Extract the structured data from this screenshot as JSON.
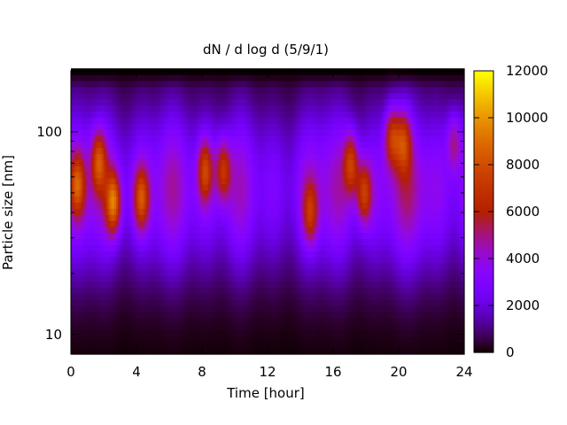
{
  "chart_data": {
    "type": "heatmap",
    "title": "dN / d log d (5/9/1)",
    "xlabel": "Time [hour]",
    "ylabel": "Particle size [nm]",
    "xlim": [
      0,
      24
    ],
    "ylim": [
      8,
      200
    ],
    "yscale": "log",
    "x_ticks": [
      "0",
      "4",
      "8",
      "12",
      "16",
      "20",
      "24"
    ],
    "x_tick_values": [
      0,
      4,
      8,
      12,
      16,
      20,
      24
    ],
    "y_ticks": [
      "10",
      "100"
    ],
    "y_tick_values": [
      10,
      100
    ],
    "colorbar": {
      "range": [
        0,
        12000
      ],
      "ticks": [
        "0",
        "2000",
        "4000",
        "6000",
        "8000",
        "10000",
        "12000"
      ],
      "tick_values": [
        0,
        2000,
        4000,
        6000,
        8000,
        10000,
        12000
      ],
      "colormap": "gnuplot-pm3d (black-purple-red-yellow)"
    },
    "mode_peaks": [
      {
        "t": 0.4,
        "d": 55,
        "v": 6500
      },
      {
        "t": 1.7,
        "d": 72,
        "v": 6800
      },
      {
        "t": 2.6,
        "d": 45,
        "v": 8600
      },
      {
        "t": 4.3,
        "d": 47,
        "v": 7000
      },
      {
        "t": 8.2,
        "d": 65,
        "v": 6500
      },
      {
        "t": 9.3,
        "d": 65,
        "v": 6200
      },
      {
        "t": 14.6,
        "d": 40,
        "v": 5200
      },
      {
        "t": 17.1,
        "d": 70,
        "v": 6600
      },
      {
        "t": 17.9,
        "d": 50,
        "v": 6400
      },
      {
        "t": 19.6,
        "d": 95,
        "v": 6700
      },
      {
        "t": 20.3,
        "d": 90,
        "v": 5800
      },
      {
        "t": 23.4,
        "d": 90,
        "v": 4200
      }
    ],
    "grid": false,
    "legend": "colorbar-right"
  }
}
